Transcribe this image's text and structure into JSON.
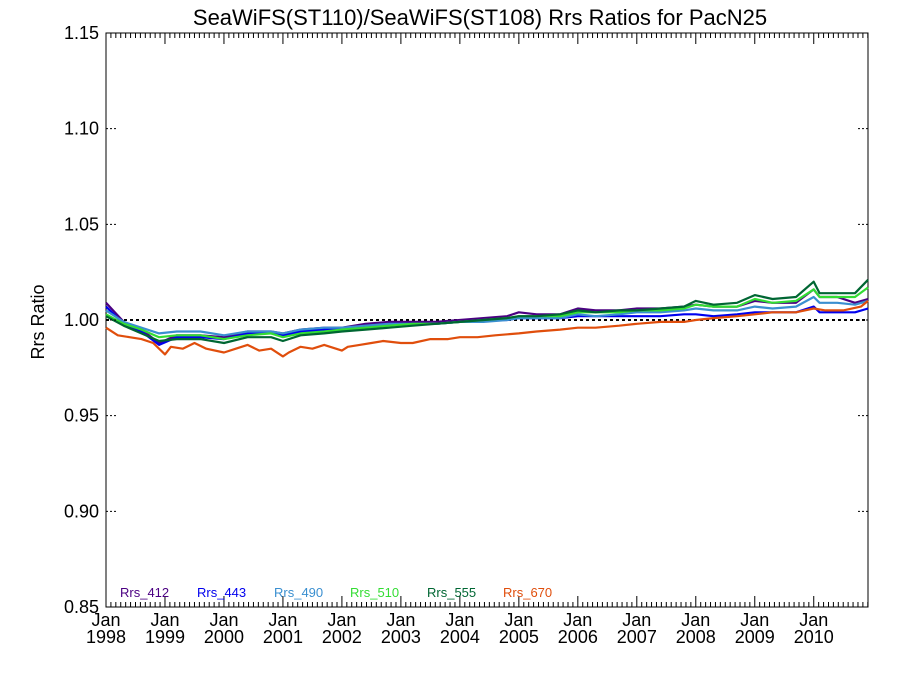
{
  "chart_data": {
    "type": "line",
    "title": "SeaWiFS(ST110)/SeaWiFS(ST108)  Rrs Ratios for PacN25",
    "xlabel": "",
    "ylabel": "Rrs Ratio",
    "xlim": [
      1998.0,
      2010.92
    ],
    "ylim": [
      0.85,
      1.15
    ],
    "yticks": [
      "0.85",
      "0.90",
      "0.95",
      "1.00",
      "1.05",
      "1.10",
      "1.15"
    ],
    "xtick_labels": [
      {
        "x": 1998,
        "month": "Jan",
        "year": "1998"
      },
      {
        "x": 1999,
        "month": "Jan",
        "year": "1999"
      },
      {
        "x": 2000,
        "month": "Jan",
        "year": "2000"
      },
      {
        "x": 2001,
        "month": "Jan",
        "year": "2001"
      },
      {
        "x": 2002,
        "month": "Jan",
        "year": "2002"
      },
      {
        "x": 2003,
        "month": "Jan",
        "year": "2003"
      },
      {
        "x": 2004,
        "month": "Jan",
        "year": "2004"
      },
      {
        "x": 2005,
        "month": "Jan",
        "year": "2005"
      },
      {
        "x": 2006,
        "month": "Jan",
        "year": "2006"
      },
      {
        "x": 2007,
        "month": "Jan",
        "year": "2007"
      },
      {
        "x": 2008,
        "month": "Jan",
        "year": "2008"
      },
      {
        "x": 2009,
        "month": "Jan",
        "year": "2009"
      },
      {
        "x": 2010,
        "month": "Jan",
        "year": "2010"
      }
    ],
    "reference_line": 1.0,
    "grid": false,
    "legend_position": "bottom-left",
    "series": [
      {
        "name": "Rrs_412",
        "color": "#4b0082",
        "x": [
          1998.0,
          1998.3,
          1998.6,
          1998.9,
          1999.2,
          1999.6,
          2000.0,
          2000.4,
          2000.8,
          2001.0,
          2001.3,
          2001.7,
          2002.0,
          2002.4,
          2002.8,
          2003.2,
          2003.6,
          2004.0,
          2004.4,
          2004.8,
          2005.0,
          2005.3,
          2005.7,
          2006.0,
          2006.3,
          2006.7,
          2007.0,
          2007.4,
          2007.8,
          2008.0,
          2008.3,
          2008.7,
          2009.0,
          2009.3,
          2009.7,
          2010.0,
          2010.1,
          2010.4,
          2010.7,
          2010.92
        ],
        "y": [
          1.009,
          0.999,
          0.995,
          0.988,
          0.992,
          0.992,
          0.991,
          0.994,
          0.994,
          0.993,
          0.995,
          0.996,
          0.996,
          0.998,
          0.999,
          0.999,
          0.999,
          1.0,
          1.001,
          1.002,
          1.004,
          1.003,
          1.003,
          1.006,
          1.005,
          1.005,
          1.006,
          1.006,
          1.007,
          1.008,
          1.007,
          1.007,
          1.01,
          1.009,
          1.009,
          1.016,
          1.012,
          1.012,
          1.009,
          1.011
        ]
      },
      {
        "name": "Rrs_443",
        "color": "#0000ee",
        "x": [
          1998.0,
          1998.3,
          1998.6,
          1998.9,
          1999.2,
          1999.6,
          2000.0,
          2000.4,
          2000.8,
          2001.0,
          2001.3,
          2001.7,
          2002.0,
          2002.4,
          2002.8,
          2003.2,
          2003.6,
          2004.0,
          2004.4,
          2004.8,
          2005.0,
          2005.3,
          2005.7,
          2006.0,
          2006.3,
          2006.7,
          2007.0,
          2007.4,
          2007.8,
          2008.0,
          2008.3,
          2008.7,
          2009.0,
          2009.3,
          2009.7,
          2010.0,
          2010.1,
          2010.4,
          2010.7,
          2010.92
        ],
        "y": [
          1.007,
          0.998,
          0.994,
          0.987,
          0.991,
          0.991,
          0.99,
          0.993,
          0.993,
          0.992,
          0.994,
          0.995,
          0.995,
          0.997,
          0.998,
          0.998,
          0.998,
          0.999,
          1.0,
          1.0,
          1.001,
          1.001,
          1.001,
          1.002,
          1.002,
          1.002,
          1.002,
          1.002,
          1.003,
          1.003,
          1.002,
          1.003,
          1.004,
          1.004,
          1.004,
          1.007,
          1.004,
          1.004,
          1.004,
          1.006
        ]
      },
      {
        "name": "Rrs_490",
        "color": "#3a8fd0",
        "x": [
          1998.0,
          1998.3,
          1998.6,
          1998.9,
          1999.2,
          1999.6,
          2000.0,
          2000.4,
          2000.8,
          2001.0,
          2001.3,
          2001.7,
          2002.0,
          2002.4,
          2002.8,
          2003.2,
          2003.6,
          2004.0,
          2004.4,
          2004.8,
          2005.0,
          2005.3,
          2005.7,
          2006.0,
          2006.3,
          2006.7,
          2007.0,
          2007.4,
          2007.8,
          2008.0,
          2008.3,
          2008.7,
          2009.0,
          2009.3,
          2009.7,
          2010.0,
          2010.1,
          2010.4,
          2010.7,
          2010.92
        ],
        "y": [
          1.005,
          0.999,
          0.996,
          0.993,
          0.994,
          0.994,
          0.992,
          0.994,
          0.994,
          0.993,
          0.995,
          0.996,
          0.996,
          0.997,
          0.998,
          0.998,
          0.998,
          0.999,
          0.999,
          1.0,
          1.001,
          1.001,
          1.001,
          1.003,
          1.002,
          1.003,
          1.004,
          1.004,
          1.005,
          1.006,
          1.005,
          1.005,
          1.007,
          1.006,
          1.007,
          1.012,
          1.009,
          1.009,
          1.008,
          1.01
        ]
      },
      {
        "name": "Rrs_510",
        "color": "#33dd33",
        "x": [
          1998.0,
          1998.3,
          1998.6,
          1998.9,
          1999.2,
          1999.6,
          2000.0,
          2000.4,
          2000.8,
          2001.0,
          2001.3,
          2001.7,
          2002.0,
          2002.4,
          2002.8,
          2003.2,
          2003.6,
          2004.0,
          2004.4,
          2004.8,
          2005.0,
          2005.3,
          2005.7,
          2006.0,
          2006.3,
          2006.7,
          2007.0,
          2007.4,
          2007.8,
          2008.0,
          2008.3,
          2008.7,
          2009.0,
          2009.3,
          2009.7,
          2010.0,
          2010.1,
          2010.4,
          2010.7,
          2010.92
        ],
        "y": [
          1.003,
          0.998,
          0.995,
          0.991,
          0.992,
          0.992,
          0.99,
          0.992,
          0.993,
          0.991,
          0.993,
          0.994,
          0.995,
          0.996,
          0.997,
          0.998,
          0.998,
          0.999,
          1.0,
          1.001,
          1.002,
          1.002,
          1.002,
          1.004,
          1.004,
          1.004,
          1.005,
          1.005,
          1.006,
          1.008,
          1.007,
          1.007,
          1.011,
          1.009,
          1.01,
          1.016,
          1.012,
          1.012,
          1.012,
          1.017
        ]
      },
      {
        "name": "Rrs_555",
        "color": "#006633",
        "x": [
          1998.0,
          1998.3,
          1998.6,
          1998.9,
          1999.2,
          1999.6,
          2000.0,
          2000.4,
          2000.8,
          2001.0,
          2001.3,
          2001.7,
          2002.0,
          2002.4,
          2002.8,
          2003.2,
          2003.6,
          2004.0,
          2004.4,
          2004.8,
          2005.0,
          2005.3,
          2005.7,
          2006.0,
          2006.3,
          2006.7,
          2007.0,
          2007.4,
          2007.8,
          2008.0,
          2008.3,
          2008.7,
          2009.0,
          2009.3,
          2009.7,
          2010.0,
          2010.1,
          2010.4,
          2010.7,
          2010.92
        ],
        "y": [
          1.002,
          0.997,
          0.993,
          0.989,
          0.99,
          0.99,
          0.988,
          0.991,
          0.991,
          0.989,
          0.992,
          0.993,
          0.994,
          0.995,
          0.996,
          0.997,
          0.998,
          0.999,
          1.0,
          1.001,
          1.002,
          1.002,
          1.003,
          1.005,
          1.004,
          1.005,
          1.005,
          1.006,
          1.007,
          1.01,
          1.008,
          1.009,
          1.013,
          1.011,
          1.012,
          1.02,
          1.014,
          1.014,
          1.014,
          1.021
        ]
      },
      {
        "name": "Rrs_670",
        "color": "#e04e0c",
        "x": [
          1998.0,
          1998.2,
          1998.4,
          1998.6,
          1998.8,
          1999.0,
          1999.1,
          1999.3,
          1999.5,
          1999.7,
          2000.0,
          2000.2,
          2000.4,
          2000.6,
          2000.8,
          2001.0,
          2001.1,
          2001.3,
          2001.5,
          2001.7,
          2002.0,
          2002.1,
          2002.3,
          2002.5,
          2002.7,
          2003.0,
          2003.2,
          2003.5,
          2003.8,
          2004.0,
          2004.3,
          2004.6,
          2005.0,
          2005.3,
          2005.7,
          2006.0,
          2006.3,
          2006.7,
          2007.0,
          2007.4,
          2007.8,
          2008.0,
          2008.3,
          2008.7,
          2009.0,
          2009.3,
          2009.7,
          2010.0,
          2010.2,
          2010.5,
          2010.8,
          2010.92
        ],
        "y": [
          0.996,
          0.992,
          0.991,
          0.99,
          0.988,
          0.982,
          0.986,
          0.985,
          0.988,
          0.985,
          0.983,
          0.985,
          0.987,
          0.984,
          0.985,
          0.981,
          0.983,
          0.986,
          0.985,
          0.987,
          0.984,
          0.986,
          0.987,
          0.988,
          0.989,
          0.988,
          0.988,
          0.99,
          0.99,
          0.991,
          0.991,
          0.992,
          0.993,
          0.994,
          0.995,
          0.996,
          0.996,
          0.997,
          0.998,
          0.999,
          0.999,
          1.0,
          1.001,
          1.002,
          1.003,
          1.004,
          1.004,
          1.006,
          1.005,
          1.005,
          1.007,
          1.01
        ]
      }
    ]
  }
}
